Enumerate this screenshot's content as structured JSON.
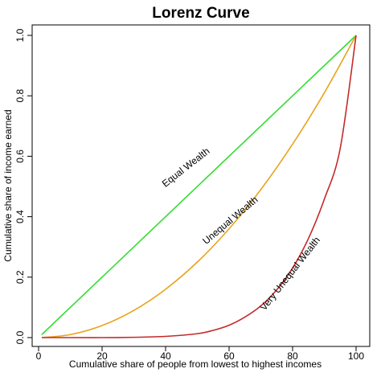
{
  "chart_data": {
    "type": "line",
    "title": "Lorenz Curve",
    "xlabel": "Cumulative share of people from lowest to highest incomes",
    "ylabel": "Cumulative share of income earned",
    "xlim": [
      0,
      100
    ],
    "ylim": [
      0,
      1
    ],
    "xticks": [
      0,
      20,
      40,
      60,
      80,
      100
    ],
    "xtick_labels": [
      "0",
      "20",
      "40",
      "60",
      "80",
      "100"
    ],
    "yticks": [
      0,
      0.2,
      0.4,
      0.6,
      0.8,
      1
    ],
    "ytick_labels": [
      "0.0",
      "0.2",
      "0.4",
      "0.6",
      "0.8",
      "1.0"
    ],
    "grid": false,
    "series": [
      {
        "label": "Equal Wealth",
        "color": "#33dd33",
        "x": [
          1,
          100
        ],
        "y": [
          0.01,
          1.0
        ],
        "label_at": {
          "x": 47,
          "y": 0.555,
          "angle_deg": -38
        }
      },
      {
        "label": "Unequal Wealth",
        "color": "#e8a31c",
        "x": [
          1,
          10,
          20,
          30,
          40,
          50,
          60,
          70,
          80,
          90,
          100
        ],
        "y": [
          0.0,
          0.01,
          0.04,
          0.09,
          0.16,
          0.25,
          0.36,
          0.49,
          0.64,
          0.81,
          1.0
        ],
        "label_at": {
          "x": 61,
          "y": 0.38,
          "angle_deg": -40
        }
      },
      {
        "label": "Very Unequal Wealth",
        "color": "#c42a2a",
        "x": [
          1,
          10,
          20,
          30,
          40,
          50,
          55,
          60,
          65,
          70,
          75,
          80,
          85,
          90,
          95,
          100
        ],
        "y": [
          0.0,
          0.0,
          0.0,
          0.001,
          0.004,
          0.013,
          0.024,
          0.041,
          0.068,
          0.105,
          0.158,
          0.23,
          0.328,
          0.458,
          0.626,
          1.0
        ],
        "label_at": {
          "x": 80,
          "y": 0.205,
          "angle_deg": -52
        }
      }
    ]
  }
}
